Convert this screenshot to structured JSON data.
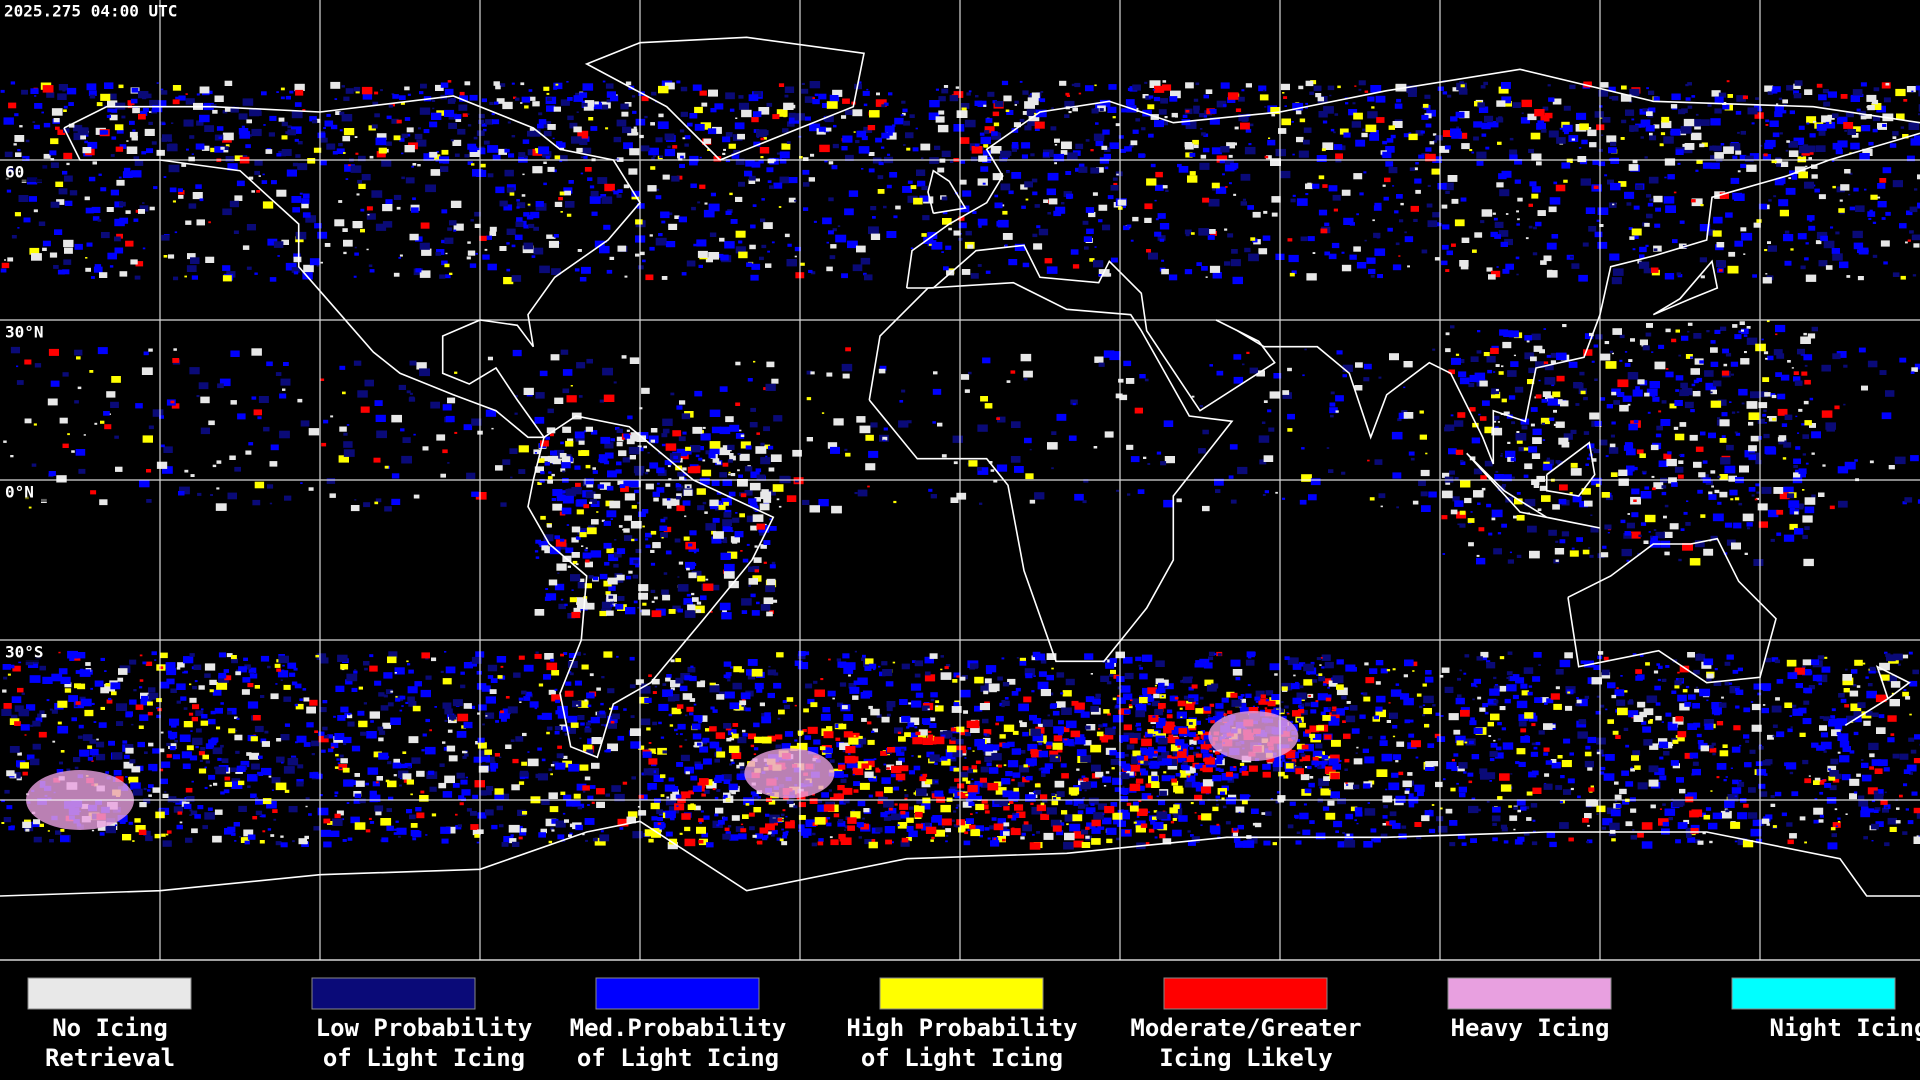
{
  "header": {
    "timestamp": "2025.275 04:00 UTC"
  },
  "map": {
    "lat_labels": [
      "60",
      "30°N",
      "0°N",
      "30°S"
    ]
  },
  "legend": {
    "items": [
      {
        "color": "#e8e8e8",
        "lines": [
          "No Icing",
          "Retrieval"
        ]
      },
      {
        "color": "#0a0a78",
        "lines": [
          "Low Probability",
          "of Light Icing"
        ]
      },
      {
        "color": "#0000ff",
        "lines": [
          "Med.Probability",
          "of Light Icing"
        ]
      },
      {
        "color": "#ffff00",
        "lines": [
          "High Probability",
          "of Light Icing"
        ]
      },
      {
        "color": "#ff0000",
        "lines": [
          "Moderate/Greater",
          "Icing Likely"
        ]
      },
      {
        "color": "#e8a0e0",
        "lines": [
          "Heavy Icing",
          ""
        ]
      },
      {
        "color": "#00ffff",
        "lines": [
          "Night Icing",
          ""
        ]
      }
    ]
  }
}
